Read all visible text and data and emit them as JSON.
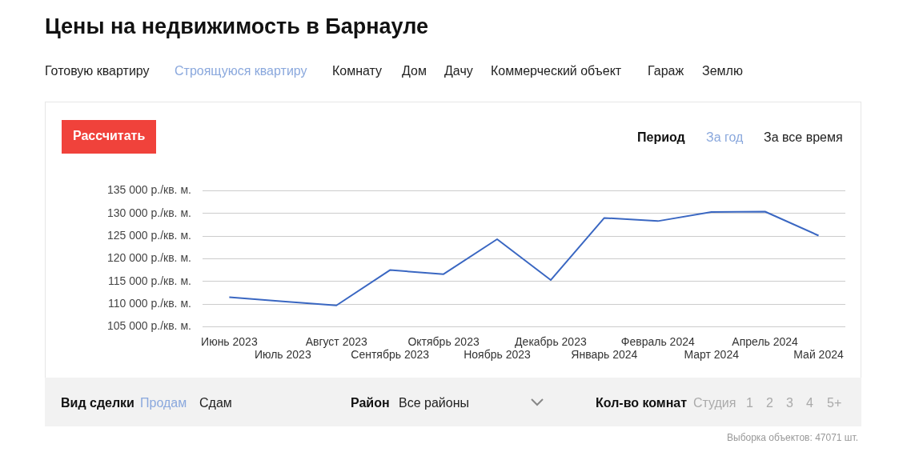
{
  "chart_data": {
    "type": "line",
    "title": "Цены на недвижимость в Барнауле",
    "categories": [
      "Июнь 2023",
      "Июль 2023",
      "Август 2023",
      "Сентябрь 2023",
      "Октябрь 2023",
      "Ноябрь 2023",
      "Декабрь 2023",
      "Январь 2024",
      "Февраль 2024",
      "Март 2024",
      "Апрель 2024",
      "Май 2024"
    ],
    "series": [
      {
        "color": "#3a67c2",
        "values": [
          111500,
          110600,
          109700,
          117500,
          116600,
          124300,
          115300,
          129000,
          128300,
          130300,
          130400,
          125100
        ]
      }
    ],
    "ylim": [
      105000,
      135000
    ],
    "yticks": [
      {
        "value": 105000,
        "label": "105 000 р./кв. м."
      },
      {
        "value": 110000,
        "label": "110 000 р./кв. м."
      },
      {
        "value": 115000,
        "label": "115 000 р./кв. м."
      },
      {
        "value": 120000,
        "label": "120 000 р./кв. м."
      },
      {
        "value": 125000,
        "label": "125 000 р./кв. м."
      },
      {
        "value": 130000,
        "label": "130 000 р./кв. м."
      },
      {
        "value": 135000,
        "label": "135 000 р./кв. м."
      }
    ],
    "grid": "y",
    "legend": false,
    "marker": "none",
    "line_style": "solid",
    "annotations": [
      "Готовую квартиру",
      "Строящуюся квартиру",
      "Комнату",
      "Дом",
      "Дачу",
      "Коммерческий объект",
      "Гараж",
      "Землю",
      "Рассчитать",
      "Период",
      "За год",
      "За все время",
      "Вид сделки",
      "Продам",
      "Сдам",
      "Район",
      "Все районы",
      "Кол-во комнат",
      "Студия",
      "1",
      "2",
      "3",
      "4",
      "5+",
      "Выборка объектов: 47071 шт."
    ]
  }
}
